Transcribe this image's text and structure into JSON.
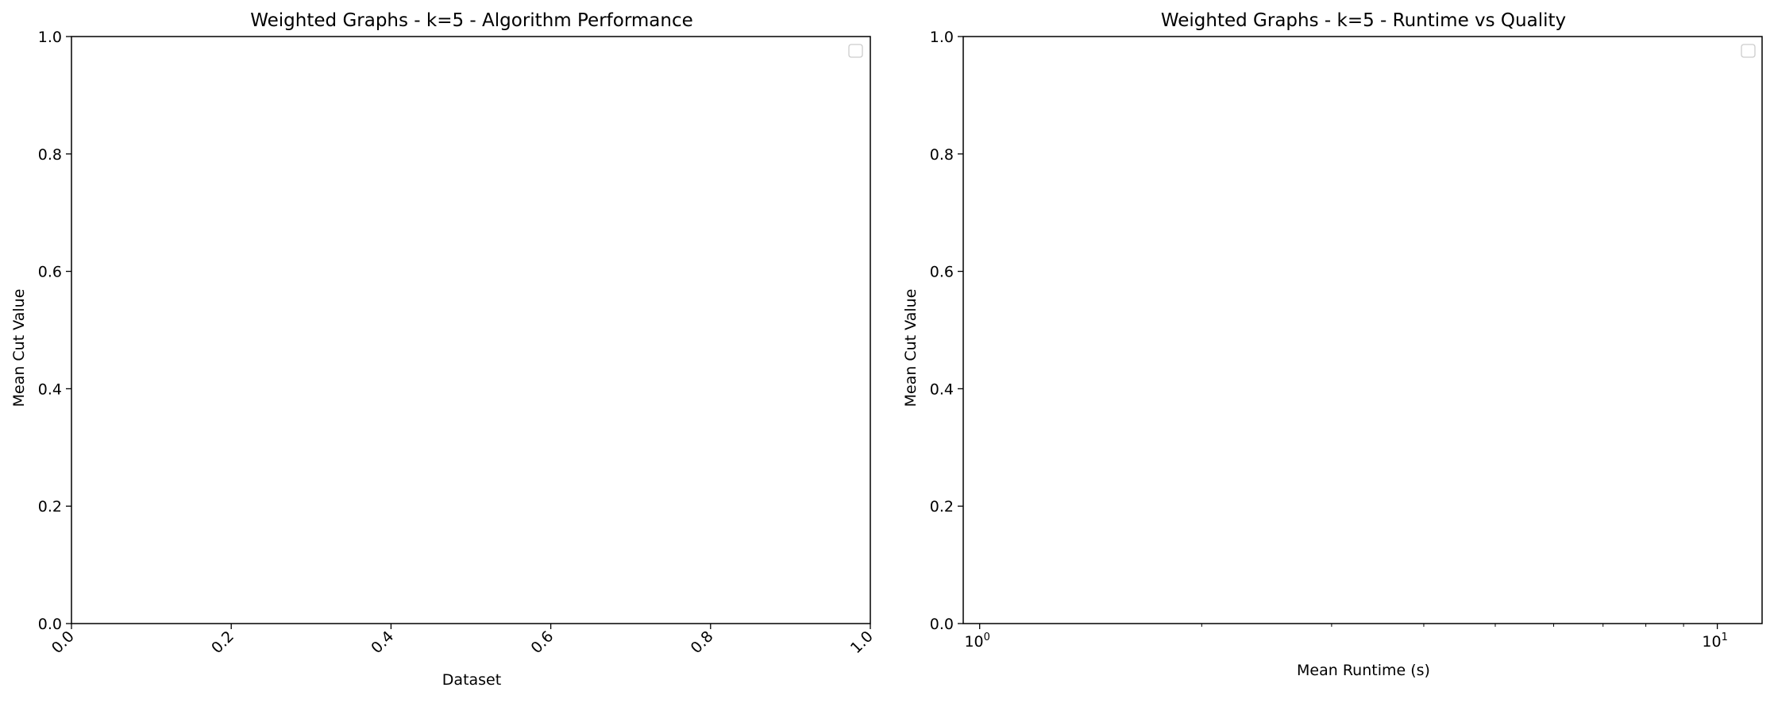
{
  "chart_data": [
    {
      "type": "bar",
      "title": "Weighted Graphs - k=5 - Algorithm Performance",
      "xlabel": "Dataset",
      "ylabel": "Mean Cut Value",
      "xlim": [
        0.0,
        1.0
      ],
      "ylim": [
        0.0,
        1.0
      ],
      "xticks": [
        "0.0",
        "0.2",
        "0.4",
        "0.6",
        "0.8",
        "1.0"
      ],
      "yticks": [
        "0.0",
        "0.2",
        "0.4",
        "0.6",
        "0.8",
        "1.0"
      ],
      "xscale": "linear",
      "xtick_rotation": 45,
      "grid": false,
      "legend": {
        "placement": "top-right",
        "entries": []
      },
      "series": []
    },
    {
      "type": "scatter",
      "title": "Weighted Graphs - k=5 - Runtime vs Quality",
      "xlabel": "Mean Runtime (s)",
      "ylabel": "Mean Cut Value",
      "xlim": [
        0.95,
        11.5
      ],
      "ylim": [
        0.0,
        1.0
      ],
      "xticks": [
        {
          "value": 1,
          "base": "10",
          "exp": "0"
        },
        {
          "value": 10,
          "base": "10",
          "exp": "1"
        }
      ],
      "yticks": [
        "0.0",
        "0.2",
        "0.4",
        "0.6",
        "0.8",
        "1.0"
      ],
      "xscale": "log",
      "grid": false,
      "legend": {
        "placement": "top-right",
        "entries": []
      },
      "series": []
    }
  ]
}
